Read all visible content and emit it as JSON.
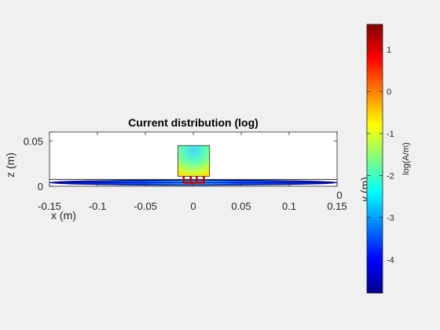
{
  "chart_data": {
    "type": "heatmap",
    "title": "Current distribution (log)",
    "xlabel": "x (m)",
    "ylabel": "z (m)",
    "ylabel_clipped": "y (m)",
    "y_edge_tick": "0",
    "xlim": [
      -0.15,
      0.15
    ],
    "zlim": [
      0,
      0.06
    ],
    "x_ticks": [
      "-0.15",
      "-0.1",
      "-0.05",
      "0",
      "0.05",
      "0.1",
      "0.15"
    ],
    "x_tick_values": [
      -0.15,
      -0.1,
      -0.05,
      0,
      0.05,
      0.1,
      0.15
    ],
    "z_ticks": [
      "0",
      "0.05"
    ],
    "z_tick_values": [
      0,
      0.05
    ],
    "colorbar": {
      "label": "log(A/m)",
      "colormap": "jet",
      "range": [
        -4.8,
        1.6
      ],
      "tick_values": [
        1,
        0,
        -1,
        -2,
        -3,
        -4
      ],
      "tick_labels": [
        "1",
        "0",
        "-1",
        "-2",
        "-3",
        "-4"
      ]
    },
    "structures": {
      "ground_plane": {
        "x_extent": [
          -0.15,
          0.15
        ],
        "z": 0.004,
        "log_current": -4.2
      },
      "radiator": {
        "x_extent": [
          -0.016,
          0.017
        ],
        "z_extent": [
          0.011,
          0.045
        ],
        "log_current_range": [
          -2.6,
          -0.6
        ]
      },
      "feed": {
        "x_extent": [
          -0.01,
          0.011
        ],
        "z_extent": [
          0.004,
          0.011
        ],
        "log_current": 1.2
      }
    }
  }
}
